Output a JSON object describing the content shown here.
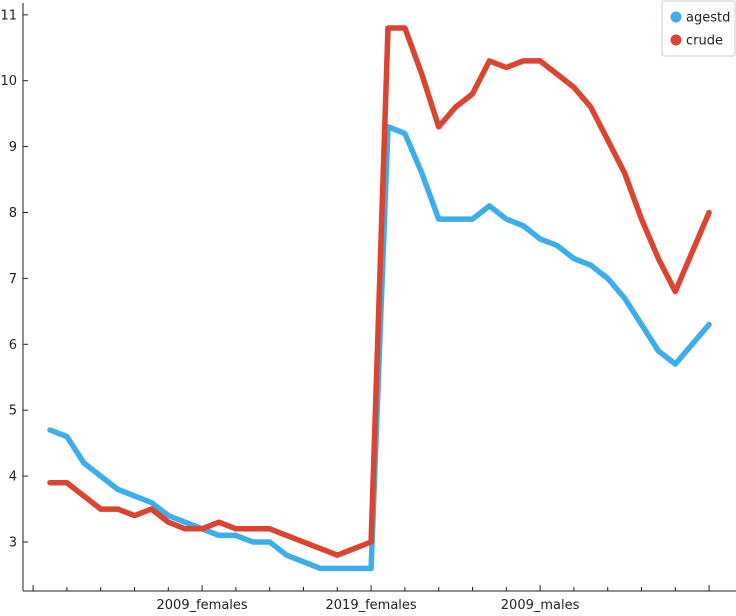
{
  "chart_data": {
    "type": "line",
    "title": "",
    "xlabel": "",
    "ylabel": "",
    "x_tick_labels": [
      "2009_females",
      "2019_females",
      "2009_males"
    ],
    "y_ticks": [
      3,
      4,
      5,
      6,
      7,
      8,
      9,
      10,
      11
    ],
    "ylim": [
      2.4,
      11.2
    ],
    "grid": false,
    "legend_position": "top-right",
    "series": [
      {
        "name": "agestd",
        "color": "#3daee9",
        "values": [
          4.7,
          4.6,
          4.2,
          4.0,
          3.8,
          3.7,
          3.6,
          3.4,
          3.3,
          3.2,
          3.1,
          3.1,
          3.0,
          3.0,
          2.8,
          2.7,
          2.6,
          2.6,
          2.6,
          2.6,
          9.3,
          9.2,
          8.6,
          7.9,
          7.9,
          7.9,
          8.1,
          7.9,
          7.8,
          7.6,
          7.5,
          7.3,
          7.2,
          7.0,
          6.7,
          6.3,
          5.9,
          5.7,
          6.0,
          6.3
        ]
      },
      {
        "name": "crude",
        "color": "#da4430",
        "values": [
          3.9,
          3.9,
          3.7,
          3.5,
          3.5,
          3.4,
          3.5,
          3.3,
          3.2,
          3.2,
          3.3,
          3.2,
          3.2,
          3.2,
          3.1,
          3.0,
          2.9,
          2.8,
          2.9,
          3.0,
          10.8,
          10.8,
          10.1,
          9.3,
          9.6,
          9.8,
          10.3,
          10.2,
          10.3,
          10.3,
          10.1,
          9.9,
          9.6,
          9.1,
          8.6,
          7.9,
          7.3,
          6.8,
          7.4,
          8.0
        ]
      }
    ]
  }
}
